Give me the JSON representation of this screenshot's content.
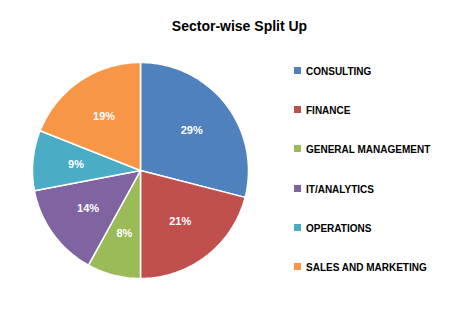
{
  "chart_data": {
    "type": "pie",
    "title": "Sector-wise Split Up",
    "categories": [
      "CONSULTING",
      "FINANCE",
      "GENERAL MANAGEMENT",
      "IT/ANALYTICS",
      "OPERATIONS",
      "SALES AND MARKETING"
    ],
    "values": [
      29,
      21,
      8,
      14,
      9,
      19
    ],
    "value_labels": [
      "29%",
      "21%",
      "8%",
      "14%",
      "9%",
      "19%"
    ],
    "colors": [
      "#4f81bd",
      "#c0504d",
      "#9bbb59",
      "#8064a2",
      "#4bacc6",
      "#f79646"
    ],
    "data_labels": true,
    "legend": "right"
  }
}
